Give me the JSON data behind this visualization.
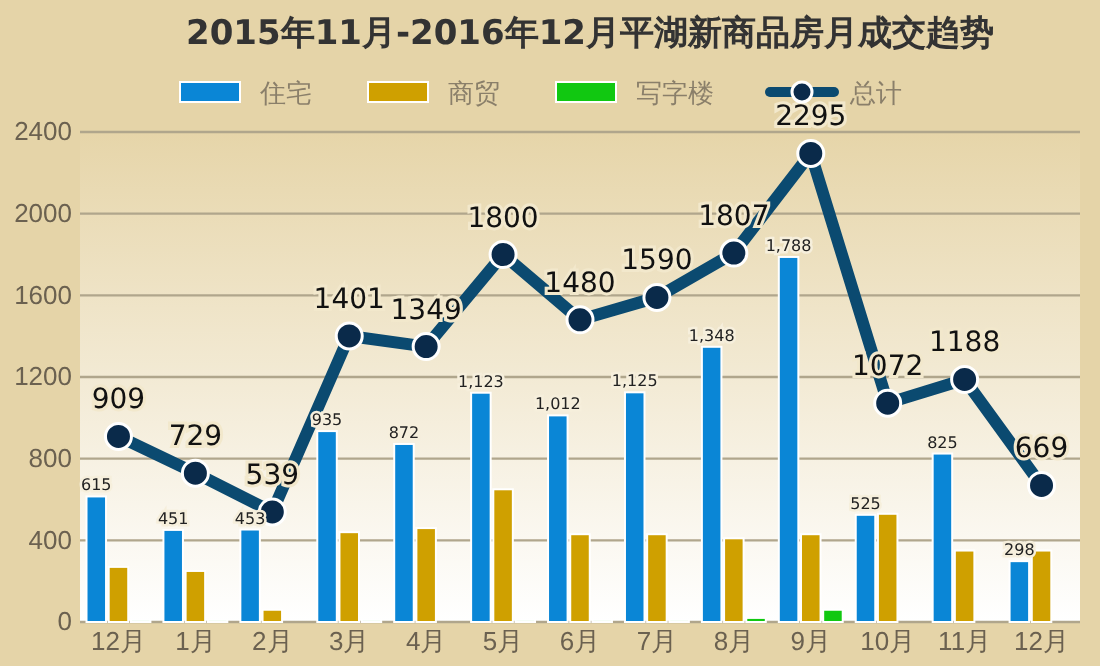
{
  "chart_data": {
    "type": "bar",
    "title": "2015年11月-2016年12月平湖新商品房月成交趋势",
    "categories": [
      "12月",
      "1月",
      "2月",
      "3月",
      "4月",
      "5月",
      "6月",
      "7月",
      "8月",
      "9月",
      "10月",
      "11月",
      "12月"
    ],
    "series": [
      {
        "name": "住宅",
        "color": "#0a86d6",
        "values": [
          615,
          451,
          453,
          935,
          872,
          1123,
          1012,
          1125,
          1348,
          1788,
          525,
          825,
          298
        ],
        "value_labels": [
          "615",
          "451",
          "453",
          "935",
          "872",
          "1,123",
          "1,012",
          "1,125",
          "1,348",
          "1,788",
          "525",
          "825",
          "298"
        ]
      },
      {
        "name": "商贸",
        "color": "#cfa000",
        "values": [
          270,
          250,
          60,
          440,
          460,
          650,
          430,
          430,
          410,
          430,
          530,
          350,
          350
        ]
      },
      {
        "name": "写字楼",
        "color": "#11c811",
        "values": [
          10,
          10,
          0,
          10,
          0,
          10,
          10,
          10,
          20,
          60,
          0,
          0,
          0
        ]
      },
      {
        "name": "总计",
        "type": "line",
        "color": "#0b4a70",
        "values": [
          909,
          729,
          539,
          1401,
          1349,
          1800,
          1480,
          1590,
          1807,
          2295,
          1072,
          1188,
          669
        ],
        "value_labels": [
          "909",
          "729",
          "539",
          "1401",
          "1349",
          "1800",
          "1480",
          "1590",
          "1807",
          "2295",
          "1072",
          "1188",
          "669"
        ]
      }
    ],
    "ylim": [
      0,
      2400
    ],
    "yticks": [
      0,
      400,
      800,
      1200,
      1600,
      2000,
      2400
    ],
    "grid": "y",
    "legend": "top",
    "marker": "circle"
  }
}
